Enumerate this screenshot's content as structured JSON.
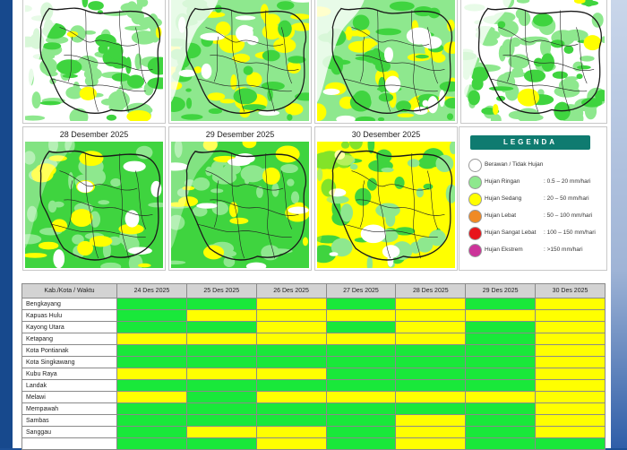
{
  "maps": [
    {
      "title": "",
      "pattern": "sparse"
    },
    {
      "title": "",
      "pattern": "mixed"
    },
    {
      "title": "",
      "pattern": "mixed"
    },
    {
      "title": "",
      "pattern": "sparse"
    },
    {
      "title": "28 Desember 2025",
      "pattern": "dense"
    },
    {
      "title": "29 Desember 2025",
      "pattern": "dense"
    },
    {
      "title": "30 Desember 2025",
      "pattern": "yellow"
    }
  ],
  "legend": {
    "title": "LEGENDA",
    "items": [
      {
        "label": "Berawan / Tidak Hujan",
        "range": "",
        "color": "#ffffff"
      },
      {
        "label": "Hujan Ringan",
        "range": ": 0.5 – 20 mm/hari",
        "color": "#8ee88e"
      },
      {
        "label": "Hujan Sedang",
        "range": ": 20 – 50 mm/hari",
        "color": "#ffff00"
      },
      {
        "label": "Hujan Lebat",
        "range": ": 50 – 100 mm/hari",
        "color": "#f08a24"
      },
      {
        "label": "Hujan Sangat Lebat",
        "range": ": 100 – 150 mm/hari",
        "color": "#e8141b"
      },
      {
        "label": "Hujan Ekstrem",
        "range": ": >150 mm/hari",
        "color": "#cc3399"
      }
    ]
  },
  "table": {
    "corner": "Kab./Kota / Waktu",
    "dates": [
      "24 Des 2025",
      "25 Des 2025",
      "26 Des 2025",
      "27 Des 2025",
      "28 Des 2025",
      "29 Des 2025",
      "30 Des 2025"
    ],
    "rows": [
      {
        "name": "Bengkayang",
        "cells": [
          "g",
          "g",
          "y",
          "g",
          "y",
          "g",
          "y"
        ]
      },
      {
        "name": "Kapuas Hulu",
        "cells": [
          "g",
          "y",
          "y",
          "y",
          "y",
          "y",
          "y"
        ]
      },
      {
        "name": "Kayong Utara",
        "cells": [
          "g",
          "g",
          "y",
          "g",
          "y",
          "g",
          "y"
        ]
      },
      {
        "name": "Ketapang",
        "cells": [
          "y",
          "y",
          "y",
          "y",
          "y",
          "g",
          "y"
        ]
      },
      {
        "name": "Kota Pontianak",
        "cells": [
          "g",
          "g",
          "g",
          "g",
          "g",
          "g",
          "y"
        ]
      },
      {
        "name": "Kota Singkawang",
        "cells": [
          "g",
          "g",
          "g",
          "g",
          "g",
          "g",
          "y"
        ]
      },
      {
        "name": "Kubu Raya",
        "cells": [
          "y",
          "y",
          "y",
          "g",
          "g",
          "g",
          "y"
        ]
      },
      {
        "name": "Landak",
        "cells": [
          "g",
          "g",
          "g",
          "g",
          "g",
          "g",
          "y"
        ]
      },
      {
        "name": "Melawi",
        "cells": [
          "y",
          "g",
          "y",
          "y",
          "y",
          "y",
          "y"
        ]
      },
      {
        "name": "Mempawah",
        "cells": [
          "g",
          "g",
          "g",
          "g",
          "g",
          "g",
          "y"
        ]
      },
      {
        "name": "Sambas",
        "cells": [
          "g",
          "g",
          "g",
          "g",
          "y",
          "g",
          "y"
        ]
      },
      {
        "name": "Sanggau",
        "cells": [
          "g",
          "y",
          "y",
          "g",
          "y",
          "g",
          "y"
        ]
      },
      {
        "name": "",
        "cells": [
          "g",
          "g",
          "y",
          "g",
          "y",
          "g",
          "g"
        ]
      }
    ]
  }
}
